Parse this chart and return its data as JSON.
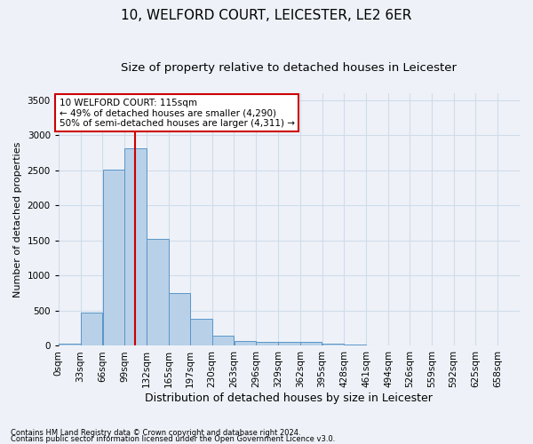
{
  "title": "10, WELFORD COURT, LEICESTER, LE2 6ER",
  "subtitle": "Size of property relative to detached houses in Leicester",
  "xlabel": "Distribution of detached houses by size in Leicester",
  "ylabel": "Number of detached properties",
  "bin_labels": [
    "0sqm",
    "33sqm",
    "66sqm",
    "99sqm",
    "132sqm",
    "165sqm",
    "197sqm",
    "230sqm",
    "263sqm",
    "296sqm",
    "329sqm",
    "362sqm",
    "395sqm",
    "428sqm",
    "461sqm",
    "494sqm",
    "526sqm",
    "559sqm",
    "592sqm",
    "625sqm",
    "658sqm"
  ],
  "bin_edges": [
    0,
    33,
    66,
    99,
    132,
    165,
    197,
    230,
    263,
    296,
    329,
    362,
    395,
    428,
    461,
    494,
    526,
    559,
    592,
    625,
    658
  ],
  "bar_heights": [
    25,
    480,
    2510,
    2820,
    1520,
    750,
    390,
    140,
    75,
    55,
    55,
    55,
    30,
    20,
    5,
    5,
    0,
    0,
    0,
    0
  ],
  "bar_color": "#b8d0e8",
  "bar_edge_color": "#5a96c8",
  "bar_edge_width": 0.7,
  "grid_color": "#d0dcea",
  "background_color": "#eef2f8",
  "vline_x": 115,
  "vline_color": "#cc0000",
  "annotation_box_text": "10 WELFORD COURT: 115sqm\n← 49% of detached houses are smaller (4,290)\n50% of semi-detached houses are larger (4,311) →",
  "annotation_fontsize": 7.5,
  "ylim": [
    0,
    3600
  ],
  "yticks": [
    0,
    500,
    1000,
    1500,
    2000,
    2500,
    3000,
    3500
  ],
  "footnote1": "Contains HM Land Registry data © Crown copyright and database right 2024.",
  "footnote2": "Contains public sector information licensed under the Open Government Licence v3.0.",
  "title_fontsize": 11,
  "subtitle_fontsize": 9.5,
  "xlabel_fontsize": 9,
  "ylabel_fontsize": 8,
  "tick_fontsize": 7.5
}
